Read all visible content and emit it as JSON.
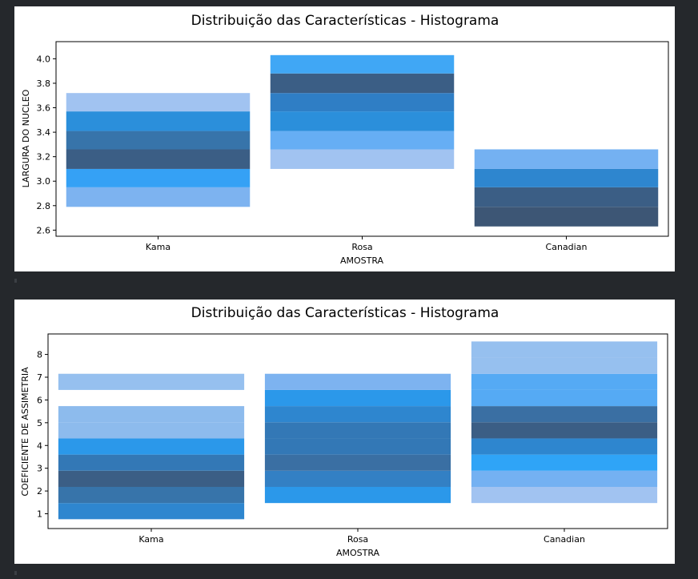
{
  "colors": {
    "background": "#25282c",
    "panel": "#ffffff",
    "frame": "#000000"
  },
  "chart_data": [
    {
      "type": "heatmap",
      "title": "Distribuição das Características - Histograma",
      "xlabel": "AMOSTRA",
      "ylabel": "LARGURA DO NUCLEO",
      "categories": [
        "Kama",
        "Rosa",
        "Canadian"
      ],
      "ylim": [
        2.55,
        4.14
      ],
      "yticks": [
        2.6,
        2.8,
        3.0,
        3.2,
        3.4,
        3.6,
        3.8,
        4.0
      ],
      "ytick_labels": [
        "2.6",
        "2.8",
        "3.0",
        "3.2",
        "3.4",
        "3.6",
        "3.8",
        "4.0"
      ],
      "grid": false,
      "cells": [
        {
          "cat": "Kama",
          "y0": 2.79,
          "y1": 2.95,
          "color": "#7db3f0"
        },
        {
          "cat": "Kama",
          "y0": 2.95,
          "y1": 3.1,
          "color": "#35a1f5"
        },
        {
          "cat": "Kama",
          "y0": 3.1,
          "y1": 3.26,
          "color": "#3b5e85"
        },
        {
          "cat": "Kama",
          "y0": 3.26,
          "y1": 3.41,
          "color": "#3774aa"
        },
        {
          "cat": "Kama",
          "y0": 3.41,
          "y1": 3.57,
          "color": "#2b8fdb"
        },
        {
          "cat": "Kama",
          "y0": 3.57,
          "y1": 3.72,
          "color": "#a1c3f1"
        },
        {
          "cat": "Rosa",
          "y0": 3.1,
          "y1": 3.26,
          "color": "#a1c3f1"
        },
        {
          "cat": "Rosa",
          "y0": 3.26,
          "y1": 3.41,
          "color": "#66aef4"
        },
        {
          "cat": "Rosa",
          "y0": 3.41,
          "y1": 3.57,
          "color": "#2b8fdb"
        },
        {
          "cat": "Rosa",
          "y0": 3.57,
          "y1": 3.72,
          "color": "#2f7ec5"
        },
        {
          "cat": "Rosa",
          "y0": 3.72,
          "y1": 3.88,
          "color": "#3b5e85"
        },
        {
          "cat": "Rosa",
          "y0": 3.88,
          "y1": 4.03,
          "color": "#40a7f5"
        },
        {
          "cat": "Canadian",
          "y0": 2.63,
          "y1": 2.79,
          "color": "#3d5675"
        },
        {
          "cat": "Canadian",
          "y0": 2.79,
          "y1": 2.95,
          "color": "#3b5e85"
        },
        {
          "cat": "Canadian",
          "y0": 2.95,
          "y1": 3.1,
          "color": "#2e86cf"
        },
        {
          "cat": "Canadian",
          "y0": 3.1,
          "y1": 3.26,
          "color": "#74b1f2"
        }
      ]
    },
    {
      "type": "heatmap",
      "title": "Distribuição das Características - Histograma",
      "xlabel": "AMOSTRA",
      "ylabel": "COEFICIENTE DE ASSIMETRIA",
      "categories": [
        "Kama",
        "Rosa",
        "Canadian"
      ],
      "ylim": [
        0.35,
        8.9
      ],
      "yticks": [
        1,
        2,
        3,
        4,
        5,
        6,
        7,
        8
      ],
      "ytick_labels": [
        "1",
        "2",
        "3",
        "4",
        "5",
        "6",
        "7",
        "8"
      ],
      "grid": false,
      "cells": [
        {
          "cat": "Kama",
          "y0": 0.76,
          "y1": 1.47,
          "color": "#2e86cf"
        },
        {
          "cat": "Kama",
          "y0": 1.47,
          "y1": 2.18,
          "color": "#3774aa"
        },
        {
          "cat": "Kama",
          "y0": 2.18,
          "y1": 2.89,
          "color": "#3b5e85"
        },
        {
          "cat": "Kama",
          "y0": 2.89,
          "y1": 3.6,
          "color": "#3378b6"
        },
        {
          "cat": "Kama",
          "y0": 3.6,
          "y1": 4.31,
          "color": "#2b98ea"
        },
        {
          "cat": "Kama",
          "y0": 4.31,
          "y1": 5.02,
          "color": "#8dbbed"
        },
        {
          "cat": "Kama",
          "y0": 5.02,
          "y1": 5.73,
          "color": "#8dbbed"
        },
        {
          "cat": "Kama",
          "y0": 6.44,
          "y1": 7.15,
          "color": "#96c0ef"
        },
        {
          "cat": "Rosa",
          "y0": 1.47,
          "y1": 2.18,
          "color": "#2b98ea"
        },
        {
          "cat": "Rosa",
          "y0": 2.18,
          "y1": 2.89,
          "color": "#3380c4"
        },
        {
          "cat": "Rosa",
          "y0": 2.89,
          "y1": 3.6,
          "color": "#3a6fa3"
        },
        {
          "cat": "Rosa",
          "y0": 3.6,
          "y1": 4.31,
          "color": "#3378b6"
        },
        {
          "cat": "Rosa",
          "y0": 4.31,
          "y1": 5.02,
          "color": "#3378b6"
        },
        {
          "cat": "Rosa",
          "y0": 5.02,
          "y1": 5.73,
          "color": "#2e86cf"
        },
        {
          "cat": "Rosa",
          "y0": 5.73,
          "y1": 6.44,
          "color": "#2b98ea"
        },
        {
          "cat": "Rosa",
          "y0": 6.44,
          "y1": 7.15,
          "color": "#7db3f0"
        },
        {
          "cat": "Rosa",
          "y0": 7.15,
          "y1": 7.15,
          "color": "#96c0ef"
        },
        {
          "cat": "Canadian",
          "y0": 1.47,
          "y1": 2.18,
          "color": "#a1c3f1"
        },
        {
          "cat": "Canadian",
          "y0": 2.18,
          "y1": 2.89,
          "color": "#74b1f2"
        },
        {
          "cat": "Canadian",
          "y0": 2.89,
          "y1": 3.6,
          "color": "#2fa4f7"
        },
        {
          "cat": "Canadian",
          "y0": 3.6,
          "y1": 4.31,
          "color": "#2e86cf"
        },
        {
          "cat": "Canadian",
          "y0": 4.31,
          "y1": 5.02,
          "color": "#3b5e85"
        },
        {
          "cat": "Canadian",
          "y0": 5.02,
          "y1": 5.73,
          "color": "#3a6fa3"
        },
        {
          "cat": "Canadian",
          "y0": 5.73,
          "y1": 6.44,
          "color": "#55aaf4"
        },
        {
          "cat": "Canadian",
          "y0": 6.44,
          "y1": 7.15,
          "color": "#55aaf4"
        },
        {
          "cat": "Canadian",
          "y0": 7.15,
          "y1": 7.86,
          "color": "#96c0ef"
        },
        {
          "cat": "Canadian",
          "y0": 7.86,
          "y1": 8.57,
          "color": "#96c0ef"
        }
      ]
    }
  ]
}
